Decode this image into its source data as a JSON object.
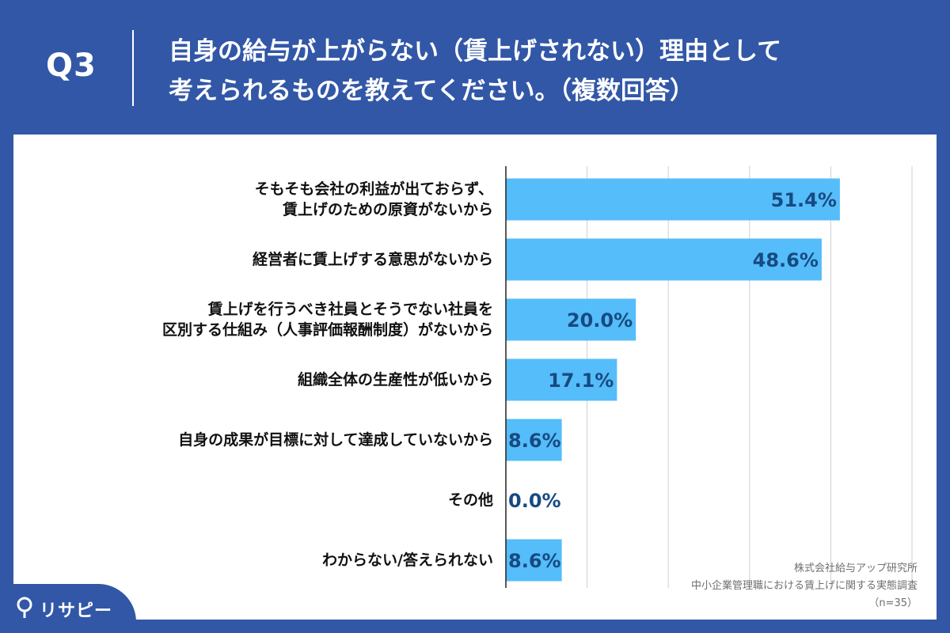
{
  "header": {
    "q_label": "Q3",
    "question_line1": "自身の給与が上がらない（賃上げされない）理由として",
    "question_line2": "考えられるものを教えてください。（複数回答）"
  },
  "chart_data": {
    "type": "bar",
    "orientation": "horizontal",
    "categories": [
      [
        "そもそも会社の利益が出ておらず、",
        "賃上げのための原資がないから"
      ],
      [
        "経営者に賃上げする意思がないから"
      ],
      [
        "賃上げを行うべき社員とそうでない社員を",
        "区別する仕組み（人事評価報酬制度）がないから"
      ],
      [
        "組織全体の生産性が低いから"
      ],
      [
        "自身の成果が目標に対して達成していないから"
      ],
      [
        "その他"
      ],
      [
        "わからない/答えられない"
      ]
    ],
    "values": [
      51.4,
      48.6,
      20.0,
      17.1,
      8.6,
      0.0,
      8.6
    ],
    "value_labels": [
      "51.4%",
      "48.6%",
      "20.0%",
      "17.1%",
      "8.6%",
      "0.0%",
      "8.6%"
    ],
    "xlim": [
      0,
      62.5
    ],
    "grid": true,
    "bar_color": "#55bdf9",
    "label_color": "#174a82"
  },
  "source": {
    "line1": "株式会社給与アップ研究所",
    "line2": "中小企業管理職における賃上げに関する実態調査",
    "line3": "（n=35）"
  },
  "logo": {
    "text": "リサピー",
    "icon": "pin-icon"
  },
  "colors": {
    "background": "#3257a7",
    "panel": "#ffffff",
    "grid": "#cfcfcf",
    "axis": "#222222"
  }
}
